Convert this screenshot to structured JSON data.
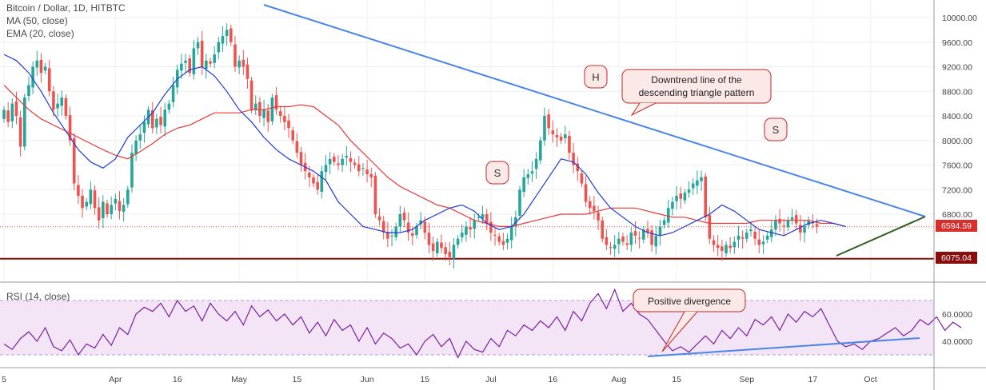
{
  "chart_data": {
    "type": "candlestick",
    "title": "Bitcoin / Dollar, 1D, HITBTC",
    "indicators": [
      "MA (50, close)",
      "EMA (20, close)"
    ],
    "price_axis": {
      "range": [
        5800,
        10150
      ],
      "ticks": [
        10000,
        9600,
        9200,
        8800,
        8400,
        8000,
        7600,
        7200,
        6800
      ]
    },
    "rsi_axis": {
      "range": [
        22,
        78
      ],
      "ticks": [
        60,
        40
      ],
      "band": [
        30,
        70
      ]
    },
    "x_labels": [
      {
        "label": "5",
        "day": 0
      },
      {
        "label": "Apr",
        "day": 27
      },
      {
        "label": "16",
        "day": 42
      },
      {
        "label": "May",
        "day": 57
      },
      {
        "label": "15",
        "day": 71
      },
      {
        "label": "Jun",
        "day": 88
      },
      {
        "label": "15",
        "day": 102
      },
      {
        "label": "Jul",
        "day": 118
      },
      {
        "label": "16",
        "day": 133
      },
      {
        "label": "Aug",
        "day": 149
      },
      {
        "label": "15",
        "day": 163
      },
      {
        "label": "Sep",
        "day": 180
      },
      {
        "label": "17",
        "day": 196
      },
      {
        "label": "Oct",
        "day": 210
      }
    ],
    "closes": [
      8500,
      8300,
      8600,
      8400,
      7900,
      8700,
      8900,
      9200,
      9300,
      9100,
      9200,
      8800,
      8500,
      8600,
      8700,
      8400,
      8000,
      7300,
      7100,
      6900,
      7000,
      7200,
      6900,
      6700,
      7000,
      6800,
      6950,
      7050,
      6850,
      6950,
      7200,
      7800,
      8000,
      8100,
      8300,
      8500,
      8200,
      8350,
      8250,
      8500,
      8600,
      8900,
      9150,
      9250,
      9300,
      9100,
      9500,
      9600,
      9200,
      9300,
      9250,
      9400,
      9600,
      9700,
      9800,
      9600,
      9200,
      9300,
      9200,
      9000,
      8500,
      8600,
      8400,
      8500,
      8300,
      8700,
      8500,
      8400,
      8300,
      8200,
      8000,
      7800,
      7600,
      7500,
      7400,
      7300,
      7200,
      7500,
      7600,
      7700,
      7650,
      7600,
      7700,
      7750,
      7650,
      7600,
      7500,
      7550,
      7450,
      7400,
      6800,
      6700,
      6500,
      6400,
      6450,
      6600,
      6800,
      6700,
      6500,
      6450,
      6600,
      6700,
      6500,
      6300,
      6200,
      6350,
      6250,
      6150,
      6100,
      6300,
      6400,
      6500,
      6600,
      6550,
      6700,
      6750,
      6800,
      6650,
      6500,
      6450,
      6350,
      6300,
      6400,
      6600,
      6750,
      7200,
      7400,
      7450,
      7500,
      7700,
      8000,
      8400,
      8200,
      8100,
      8050,
      8000,
      8100,
      7800,
      7600,
      7500,
      7300,
      7000,
      6900,
      6850,
      6700,
      6400,
      6300,
      6250,
      6300,
      6400,
      6350,
      6300,
      6500,
      6450,
      6400,
      6550,
      6500,
      6300,
      6450,
      6600,
      6700,
      6900,
      7000,
      7100,
      7050,
      7150,
      7200,
      7300,
      7350,
      7400,
      6750,
      6400,
      6300,
      6250,
      6200,
      6300,
      6250,
      6350,
      6450,
      6400,
      6500,
      6550,
      6400,
      6300,
      6350,
      6450,
      6550,
      6700,
      6650,
      6600,
      6700,
      6750,
      6650,
      6500,
      6600,
      6700,
      6650,
      6600
    ],
    "ma50": [
      8900,
      8700,
      8500,
      8350,
      8250,
      8150,
      8050,
      7950,
      7850,
      7760,
      7700,
      7820,
      7950,
      8100,
      8200,
      8250,
      8350,
      8450,
      8450,
      8450,
      8500,
      8500,
      8550,
      8550,
      8580,
      8550,
      8400,
      8250,
      8000,
      7800,
      7600,
      7400,
      7250,
      7150,
      7050,
      6950,
      6900,
      6800,
      6700,
      6650,
      6600,
      6600,
      6650,
      6700,
      6750,
      6800,
      6800,
      6800,
      6850,
      6900,
      6900,
      6900,
      6850,
      6800,
      6750,
      6750,
      6700,
      6650,
      6650,
      6650,
      6650,
      6700,
      6700,
      6700,
      6700,
      6700,
      6650,
      6650,
      6600
    ],
    "ema20": [
      9400,
      9300,
      9100,
      8800,
      8450,
      8150,
      7850,
      7650,
      7550,
      7700,
      8050,
      8250,
      8450,
      8750,
      9000,
      9150,
      9200,
      9050,
      8800,
      8500,
      8300,
      8050,
      7850,
      7700,
      7600,
      7500,
      7350,
      7000,
      6800,
      6600,
      6550,
      6500,
      6500,
      6550,
      6700,
      6800,
      6900,
      6950,
      6850,
      6650,
      6550,
      6600,
      6800,
      7100,
      7400,
      7700,
      7650,
      7450,
      7150,
      6900,
      6750,
      6600,
      6500,
      6450,
      6500,
      6600,
      6700,
      6800,
      6950,
      6850,
      6700,
      6550,
      6500,
      6450,
      6550,
      6650,
      6700,
      6650,
      6600
    ],
    "rsi": [
      38,
      34,
      42,
      47,
      40,
      50,
      36,
      33,
      41,
      30,
      38,
      35,
      45,
      37,
      50,
      45,
      60,
      65,
      62,
      68,
      58,
      70,
      62,
      66,
      55,
      68,
      60,
      55,
      62,
      52,
      66,
      58,
      63,
      55,
      60,
      52,
      58,
      46,
      54,
      44,
      56,
      48,
      52,
      40,
      50,
      38,
      46,
      42,
      35,
      38,
      30,
      40,
      45,
      36,
      42,
      28,
      40,
      34,
      32,
      42,
      36,
      48,
      44,
      52,
      48,
      55,
      50,
      58,
      48,
      62,
      55,
      68,
      75,
      64,
      78,
      62,
      68,
      60,
      56,
      48,
      40,
      33,
      36,
      32,
      38,
      44,
      38,
      48,
      42,
      50,
      44,
      56,
      52,
      58,
      48,
      60,
      54,
      62,
      58,
      64,
      52,
      40,
      36,
      38,
      34,
      40,
      42,
      46,
      50,
      44,
      48,
      56,
      52,
      58,
      48,
      54,
      50
    ]
  },
  "header": {
    "title": "Bitcoin / Dollar, 1D, HITBTC",
    "ma_label": "MA (50, close)",
    "ema_label": "EMA (20, close)",
    "rsi_label": "RSI (14, close)"
  },
  "price_tags": {
    "current": "6594.59",
    "support": "6075.04"
  },
  "rsi_ticks": [
    "60.0000",
    "40.0000"
  ],
  "annotations": {
    "h": "H",
    "s_left": "S",
    "s_right": "S",
    "downtrend_line1": "Downtrend line of the",
    "downtrend_line2": "descending triangle pattern",
    "divergence": "Positive divergence"
  },
  "colors": {
    "up": "#26a69a",
    "down": "#ef5350",
    "ma": "#e53935",
    "ema": "#1e3bd6",
    "trendline": "#4a86e8",
    "support": "#880e0e",
    "rising": "#2f5e1f",
    "rsi": "#7b1fa2",
    "rsi_band": "#f3e5f5",
    "badge_bg": "#d7302c"
  }
}
